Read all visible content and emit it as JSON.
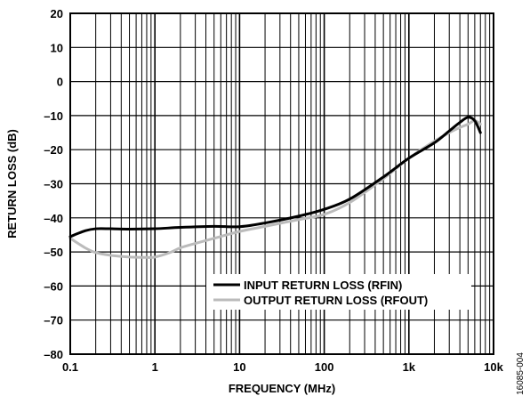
{
  "chart_data": {
    "type": "line",
    "x_scale": "log",
    "xlabel": "FREQUENCY (MHz)",
    "ylabel": "RETURN LOSS (dB)",
    "xlim": [
      0.1,
      10000
    ],
    "ylim": [
      -80,
      20
    ],
    "x_ticks": [
      0.1,
      1,
      10,
      100,
      1000,
      10000
    ],
    "x_tick_labels": [
      "0.1",
      "1",
      "10",
      "100",
      "1k",
      "10k"
    ],
    "y_ticks": [
      -80,
      -70,
      -60,
      -50,
      -40,
      -30,
      -20,
      -10,
      0,
      10,
      20
    ],
    "y_tick_labels": [
      "–80",
      "–70",
      "–60",
      "–50",
      "–40",
      "–30",
      "–20",
      "–10",
      "0",
      "10",
      "20"
    ],
    "grid": true,
    "legend_position": "lower-right",
    "series": [
      {
        "name": "INPUT RETURN LOSS (RFIN)",
        "color": "#000000",
        "x": [
          0.1,
          0.15,
          0.2,
          0.3,
          0.5,
          1,
          2,
          5,
          10,
          20,
          50,
          100,
          200,
          500,
          1000,
          2000,
          3000,
          4000,
          5000,
          6000,
          7000
        ],
        "y": [
          -45.5,
          -43.8,
          -43.2,
          -43.2,
          -43.3,
          -43.2,
          -42.8,
          -42.5,
          -42.6,
          -41.5,
          -39.5,
          -37.5,
          -34.5,
          -28,
          -22.5,
          -18,
          -14.5,
          -12,
          -10.5,
          -11.5,
          -15
        ]
      },
      {
        "name": "OUTPUT RETURN LOSS (RFOUT)",
        "color": "#bbbbbb",
        "x": [
          0.1,
          0.15,
          0.2,
          0.3,
          0.5,
          0.8,
          1,
          1.5,
          2,
          3,
          5,
          10,
          20,
          50,
          100,
          200,
          500,
          1000,
          2000,
          3000,
          4000,
          5000,
          6000,
          7000
        ],
        "y": [
          -46,
          -48.8,
          -50.2,
          -51,
          -51.5,
          -51.6,
          -51.5,
          -50.2,
          -48.8,
          -47.5,
          -46,
          -44,
          -42.5,
          -40.5,
          -39,
          -35.5,
          -28.5,
          -22.5,
          -17.5,
          -15,
          -13.5,
          -12.5,
          -11.5,
          -12.5
        ]
      }
    ]
  },
  "figure_id": "16085-004"
}
